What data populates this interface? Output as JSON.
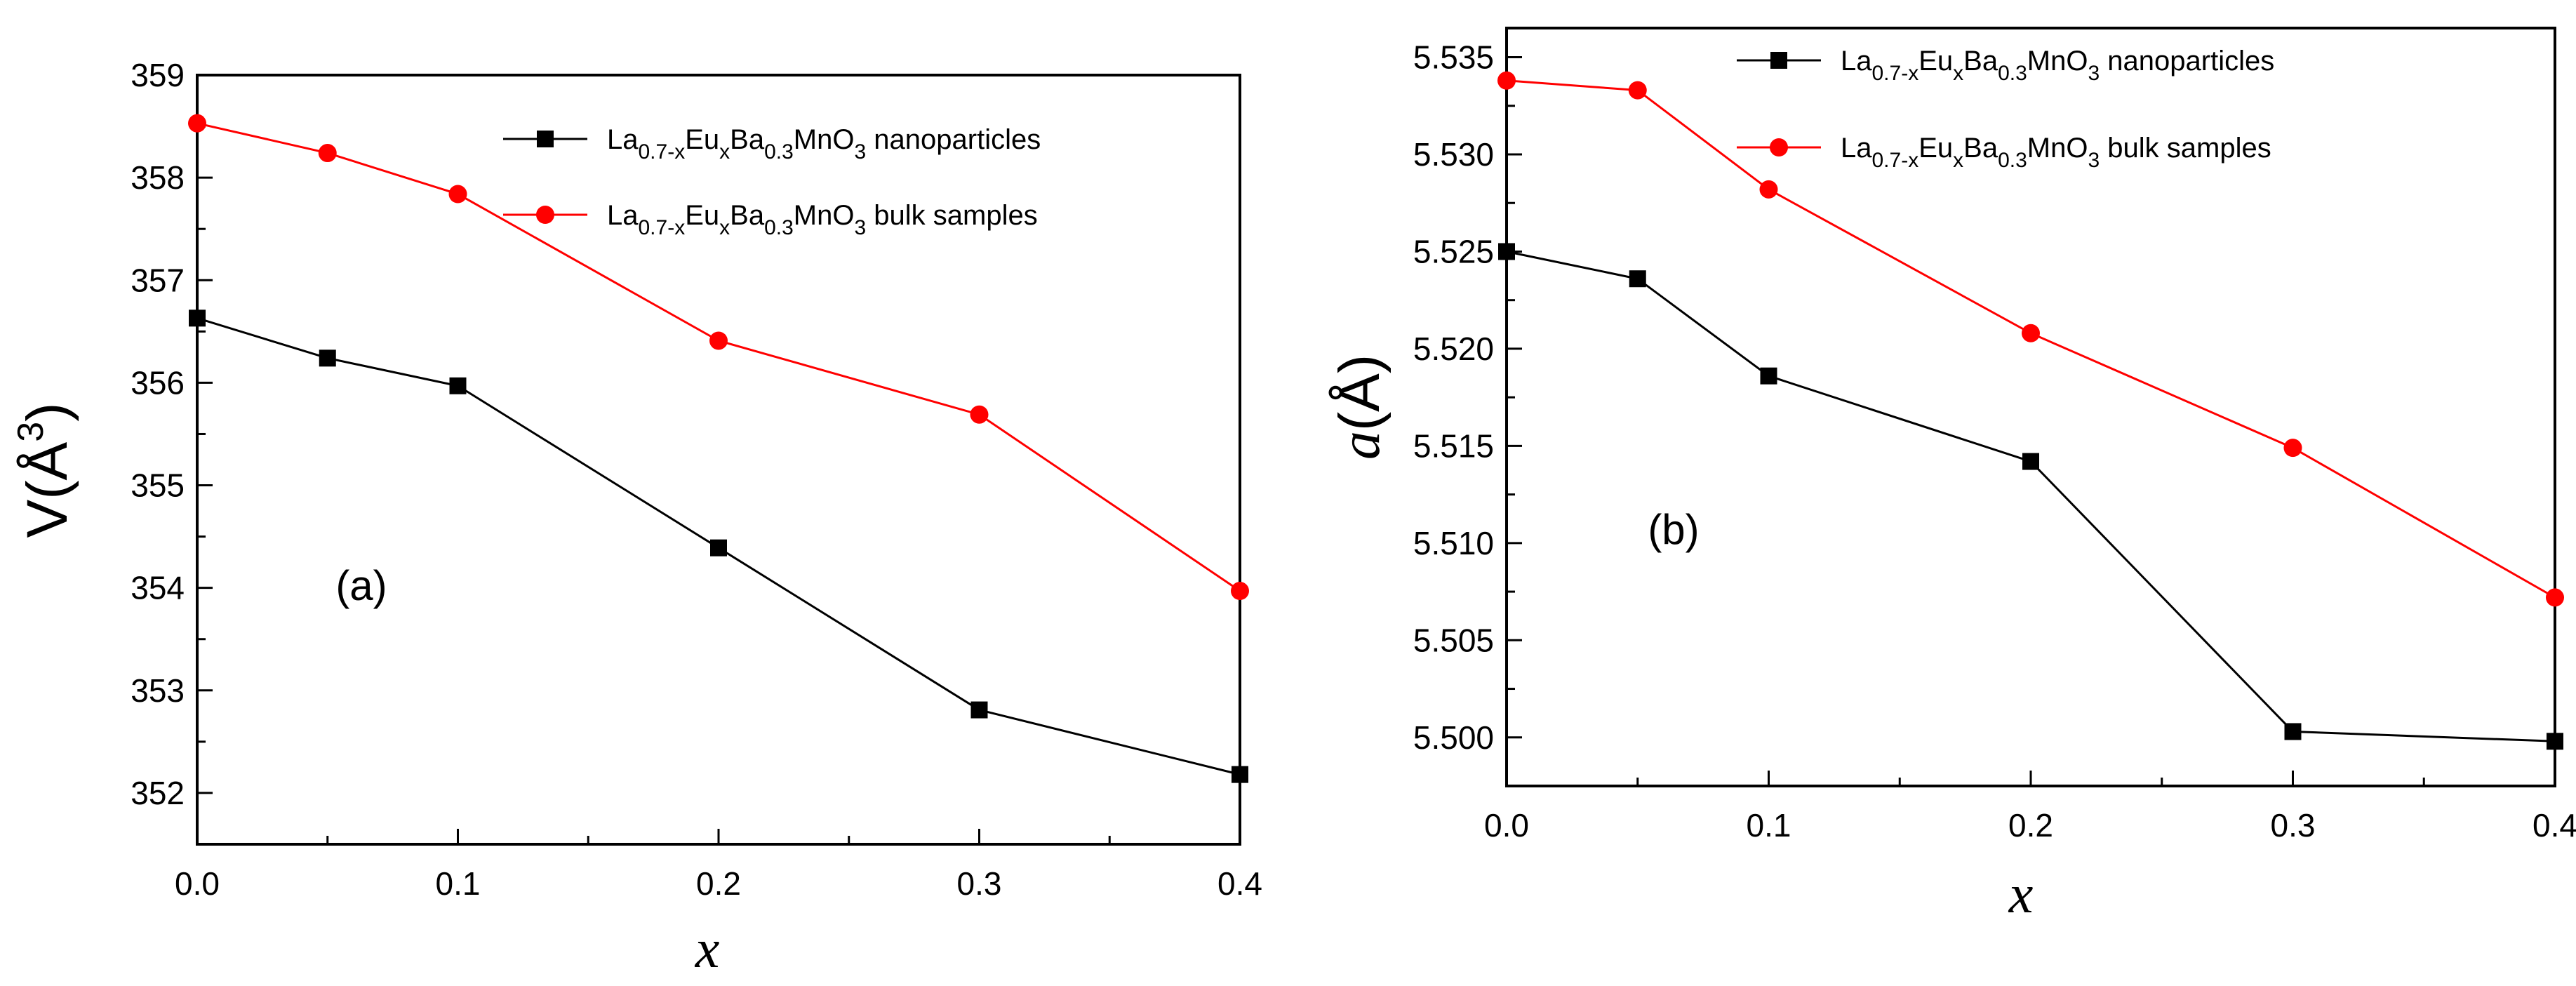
{
  "chart_data": [
    {
      "type": "line",
      "annotation": "(a)",
      "ylabel": "V(Å",
      "ylabel_sup": "3",
      "ylabel_close": ")",
      "xlabel": "x",
      "xlim": [
        0.0,
        0.4
      ],
      "ylim": [
        351.5,
        359.0
      ],
      "x": [
        0.0,
        0.05,
        0.1,
        0.2,
        0.3,
        0.4
      ],
      "xticks": [
        "0.0",
        "0.1",
        "0.2",
        "0.3",
        "0.4"
      ],
      "yticks": [
        "352",
        "353",
        "354",
        "355",
        "356",
        "357",
        "358",
        "359"
      ],
      "legend_position": "top-right",
      "series": [
        {
          "name": "La0.7-xEuxBa0.3MnO3 nanoparticles",
          "label_parts": [
            "La",
            "0.7-x",
            "Eu",
            "x",
            "Ba",
            "0.3",
            "MnO",
            "3",
            " nanoparticles"
          ],
          "marker": "square",
          "color": "#000000",
          "values": [
            356.63,
            356.24,
            355.97,
            354.39,
            352.81,
            352.18
          ]
        },
        {
          "name": "La0.7-xEuxBa0.3MnO3 bulk samples",
          "label_parts": [
            "La",
            "0.7-x",
            "Eu",
            "x",
            "Ba",
            "0.3",
            "MnO",
            "3",
            " bulk samples"
          ],
          "marker": "circle",
          "color": "#ff0000",
          "values": [
            358.53,
            358.24,
            357.84,
            356.41,
            355.69,
            353.97
          ]
        }
      ]
    },
    {
      "type": "line",
      "annotation": "(b)",
      "ylabel": "a(Å)",
      "xlabel": "x",
      "xlim": [
        0.0,
        0.4
      ],
      "ylim": [
        5.4975,
        5.5365
      ],
      "x": [
        0.0,
        0.05,
        0.1,
        0.2,
        0.3,
        0.4
      ],
      "xticks": [
        "0.0",
        "0.1",
        "0.2",
        "0.3",
        "0.4"
      ],
      "yticks": [
        "5.500",
        "5.505",
        "5.510",
        "5.515",
        "5.520",
        "5.525",
        "5.530",
        "5.535"
      ],
      "legend_position": "top-right",
      "series": [
        {
          "name": "La0.7-xEuxBa0.3MnO3 nanoparticles",
          "label_parts": [
            "La",
            "0.7-x",
            "Eu",
            "x",
            "Ba",
            "0.3",
            "MnO",
            "3",
            " nanoparticles"
          ],
          "marker": "square",
          "color": "#000000",
          "values": [
            5.525,
            5.5236,
            5.5186,
            5.5142,
            5.5003,
            5.4998
          ]
        },
        {
          "name": "La0.7-xEuxBa0.3MnO3 bulk samples",
          "label_parts": [
            "La",
            "0.7-x",
            "Eu",
            "x",
            "Ba",
            "0.3",
            "MnO",
            "3",
            " bulk samples"
          ],
          "marker": "circle",
          "color": "#ff0000",
          "values": [
            5.5338,
            5.5333,
            5.5282,
            5.5208,
            5.5149,
            5.5072
          ]
        }
      ]
    }
  ]
}
